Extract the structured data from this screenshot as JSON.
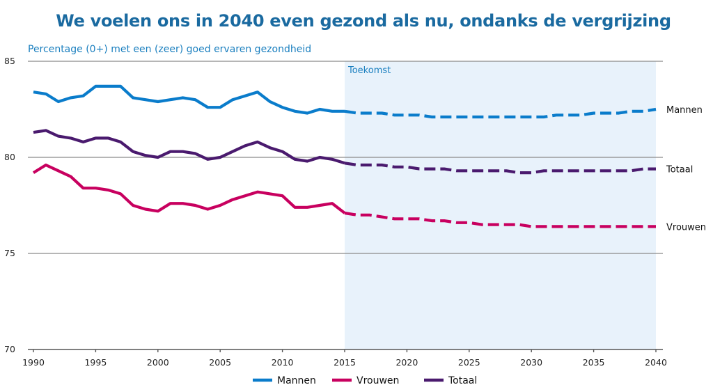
{
  "chart_data": {
    "type": "line",
    "title": "We voelen ons in 2040 even gezond als nu, ondanks de vergrijzing",
    "subtitle": "Percentage (0+) met een (zeer) goed ervaren gezondheid",
    "xlabel": "",
    "ylabel": "Percentage (0+) met een (zeer) goed ervaren gezondheid",
    "xlim": [
      1990,
      2040
    ],
    "ylim": [
      70,
      85
    ],
    "x_ticks": [
      1990,
      1995,
      2000,
      2005,
      2010,
      2015,
      2020,
      2025,
      2030,
      2035,
      2040
    ],
    "y_ticks": [
      70,
      75,
      80,
      85
    ],
    "grid": "horizontal",
    "legend_position": "bottom-center",
    "forecast_region": {
      "label": "Toekomst",
      "from": 2015,
      "to": 2040,
      "color": "#e8f2fb"
    },
    "forecast_style": "dashed",
    "x": [
      1990,
      1991,
      1992,
      1993,
      1994,
      1995,
      1996,
      1997,
      1998,
      1999,
      2000,
      2001,
      2002,
      2003,
      2004,
      2005,
      2006,
      2007,
      2008,
      2009,
      2010,
      2011,
      2012,
      2013,
      2014,
      2015,
      2016,
      2017,
      2018,
      2019,
      2020,
      2021,
      2022,
      2023,
      2024,
      2025,
      2026,
      2027,
      2028,
      2029,
      2030,
      2031,
      2032,
      2033,
      2034,
      2035,
      2036,
      2037,
      2038,
      2039,
      2040
    ],
    "series": [
      {
        "name": "Mannen",
        "color": "#0a7ccb",
        "values": [
          83.4,
          83.3,
          82.9,
          83.1,
          83.2,
          83.7,
          83.7,
          83.7,
          83.1,
          83.0,
          82.9,
          83.0,
          83.1,
          83.0,
          82.6,
          82.6,
          83.0,
          83.2,
          83.4,
          82.9,
          82.6,
          82.4,
          82.3,
          82.5,
          82.4,
          82.4,
          82.3,
          82.3,
          82.3,
          82.2,
          82.2,
          82.2,
          82.1,
          82.1,
          82.1,
          82.1,
          82.1,
          82.1,
          82.1,
          82.1,
          82.1,
          82.1,
          82.2,
          82.2,
          82.2,
          82.3,
          82.3,
          82.3,
          82.4,
          82.4,
          82.5
        ]
      },
      {
        "name": "Vrouwen",
        "color": "#c8005f",
        "values": [
          79.2,
          79.6,
          79.3,
          79.0,
          78.4,
          78.4,
          78.3,
          78.1,
          77.5,
          77.3,
          77.2,
          77.6,
          77.6,
          77.5,
          77.3,
          77.5,
          77.8,
          78.0,
          78.2,
          78.1,
          78.0,
          77.4,
          77.4,
          77.5,
          77.6,
          77.1,
          77.0,
          77.0,
          76.9,
          76.8,
          76.8,
          76.8,
          76.7,
          76.7,
          76.6,
          76.6,
          76.5,
          76.5,
          76.5,
          76.5,
          76.4,
          76.4,
          76.4,
          76.4,
          76.4,
          76.4,
          76.4,
          76.4,
          76.4,
          76.4,
          76.4
        ]
      },
      {
        "name": "Totaal",
        "color": "#4a1a6e",
        "values": [
          81.3,
          81.4,
          81.1,
          81.0,
          80.8,
          81.0,
          81.0,
          80.8,
          80.3,
          80.1,
          80.0,
          80.3,
          80.3,
          80.2,
          79.9,
          80.0,
          80.3,
          80.6,
          80.8,
          80.5,
          80.3,
          79.9,
          79.8,
          80.0,
          79.9,
          79.7,
          79.6,
          79.6,
          79.6,
          79.5,
          79.5,
          79.4,
          79.4,
          79.4,
          79.3,
          79.3,
          79.3,
          79.3,
          79.3,
          79.2,
          79.2,
          79.3,
          79.3,
          79.3,
          79.3,
          79.3,
          79.3,
          79.3,
          79.3,
          79.4,
          79.4
        ]
      }
    ]
  }
}
